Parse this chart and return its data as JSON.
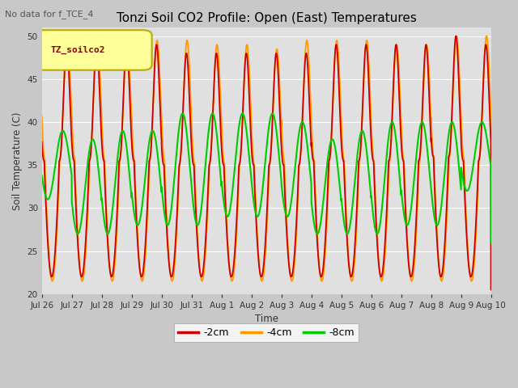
{
  "title": "Tonzi Soil CO2 Profile: Open (East) Temperatures",
  "subtitle": "No data for f_TCE_4",
  "ylabel": "Soil Temperature (C)",
  "xlabel": "Time",
  "ylim": [
    20,
    51
  ],
  "yticks": [
    20,
    25,
    30,
    35,
    40,
    45,
    50
  ],
  "fig_bg_color": "#c8c8c8",
  "plot_bg_color": "#e0e0e0",
  "line_colors": {
    "-2cm": "#cc0000",
    "-4cm": "#ff9900",
    "-8cm": "#00cc00"
  },
  "legend_label": "TZ_soilco2",
  "legend_bg": "#ffff99",
  "legend_border": "#bbaa00",
  "tick_labels": [
    "Jul 26",
    "Jul 27",
    "Jul 28",
    "Jul 29",
    "Jul 30",
    "Jul 31",
    "Aug 1",
    "Aug 2",
    "Aug 3",
    "Aug 4",
    "Aug 5",
    "Aug 6",
    "Aug 7",
    "Aug 8",
    "Aug 9",
    "Aug 10"
  ]
}
